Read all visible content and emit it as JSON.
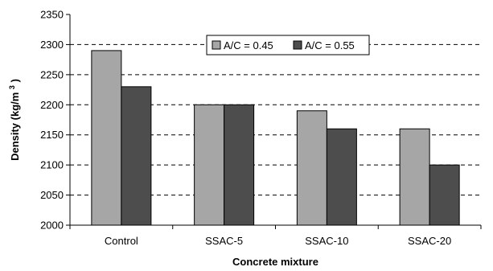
{
  "chart_data": {
    "type": "bar",
    "categories": [
      "Control",
      "SSAC-5",
      "SSAC-10",
      "SSAC-20"
    ],
    "series": [
      {
        "name": "A/C = 0.45",
        "values": [
          2290,
          2200,
          2190,
          2160
        ],
        "color": "#a6a6a6"
      },
      {
        "name": "A/C = 0.55",
        "values": [
          2230,
          2200,
          2160,
          2100
        ],
        "color": "#4d4d4d"
      }
    ],
    "xlabel": "Concrete mixture",
    "ylabel_main": "Density (kg/m",
    "ylabel_sup": "3",
    "ylabel_end": ")",
    "ylim": [
      2000,
      2350
    ],
    "yticks": [
      "2000",
      "2050",
      "2100",
      "2150",
      "2200",
      "2250",
      "2300",
      "2350"
    ],
    "grid": "horizontal-dashed",
    "legend_position": "top-center"
  }
}
